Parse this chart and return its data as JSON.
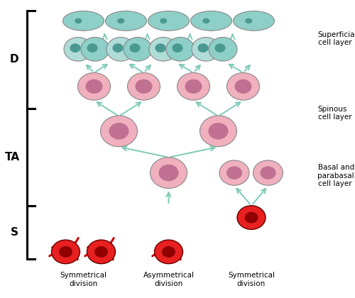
{
  "fig_width": 5.0,
  "fig_height": 4.2,
  "dpi": 100,
  "background": "#ffffff",
  "colors": {
    "teal_cell_body": "#8ecfc8",
    "teal_cell_nucleus": "#4a9990",
    "teal_cell_body_light": "#b0dcd8",
    "pink_cell_body": "#f0b0be",
    "pink_cell_nucleus": "#c07090",
    "red_cell_body": "#e82020",
    "red_cell_nucleus": "#900000",
    "arrow_teal": "#7ecab8",
    "bracket_color": "#000000",
    "text_color": "#000000",
    "red_arrow_color": "#cc0000",
    "cell_outline": "#888888"
  },
  "labels": {
    "D": "D",
    "TA": "TA",
    "S": "S",
    "superficial": "Superficial\ncell layer",
    "spinous": "Spinous\ncell layer",
    "basal": "Basal and\nparabasal\ncell layer",
    "sym1": "Symmetrical\ndivision",
    "asym": "Asymmetrical\ndivision",
    "sym2": "Symmetrical\ndivision"
  }
}
